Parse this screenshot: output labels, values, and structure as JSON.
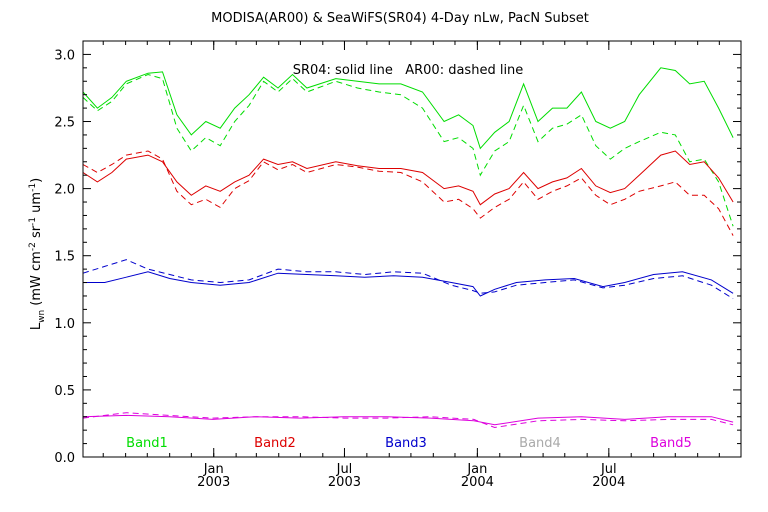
{
  "chart_data": {
    "type": "line",
    "title": "MODISA(AR00) & SeaWiFS(SR04) 4-Day nLw, PacN Subset",
    "annotation": "SR04: solid line   AR00: dashed line",
    "ylabel": "L_wn (mW cm^-2 sr^-1 um^-1)",
    "ylabel_parts": {
      "main": "L",
      "sub": "wn",
      "unit_open": " (mW cm",
      "exp1": "-2",
      "mid1": " sr",
      "exp2": "-1",
      "mid2": " um",
      "exp3": "-1",
      "close": ")"
    },
    "ylim": [
      0,
      3.1
    ],
    "yticks": [
      0.0,
      0.5,
      1.0,
      1.5,
      2.0,
      2.5,
      3.0
    ],
    "ytick_labels": [
      "0.0",
      "0.5",
      "1.0",
      "1.5",
      "2.0",
      "2.5",
      "3.0"
    ],
    "xlim": [
      "2002-07-04",
      "2004-12-31"
    ],
    "xticks": [
      {
        "date": "2003-01-01",
        "label1": "Jan",
        "label2": "2003"
      },
      {
        "date": "2003-07-01",
        "label1": "Jul",
        "label2": "2003"
      },
      {
        "date": "2004-01-01",
        "label1": "Jan",
        "label2": "2004"
      },
      {
        "date": "2004-07-01",
        "label1": "Jul",
        "label2": "2004"
      }
    ],
    "band_labels": [
      {
        "name": "Band1",
        "color": "#00dd00"
      },
      {
        "name": "Band2",
        "color": "#dd0000"
      },
      {
        "name": "Band3",
        "color": "#0000cc"
      },
      {
        "name": "Band4",
        "color": "#aaaaaa"
      },
      {
        "name": "Band5",
        "color": "#dd00dd"
      }
    ],
    "series": [
      {
        "name": "Band1",
        "style": "solid",
        "color": "#00dd00",
        "points": [
          [
            "2002-07-04",
            2.72
          ],
          [
            "2002-07-24",
            2.6
          ],
          [
            "2002-08-13",
            2.68
          ],
          [
            "2002-09-02",
            2.8
          ],
          [
            "2002-10-02",
            2.86
          ],
          [
            "2002-10-22",
            2.87
          ],
          [
            "2002-11-11",
            2.55
          ],
          [
            "2002-12-01",
            2.4
          ],
          [
            "2002-12-21",
            2.5
          ],
          [
            "2003-01-10",
            2.45
          ],
          [
            "2003-01-30",
            2.6
          ],
          [
            "2003-02-19",
            2.7
          ],
          [
            "2003-03-11",
            2.83
          ],
          [
            "2003-03-31",
            2.75
          ],
          [
            "2003-04-20",
            2.85
          ],
          [
            "2003-05-10",
            2.75
          ],
          [
            "2003-06-19",
            2.82
          ],
          [
            "2003-07-19",
            2.8
          ],
          [
            "2003-08-18",
            2.78
          ],
          [
            "2003-09-17",
            2.78
          ],
          [
            "2003-10-17",
            2.72
          ],
          [
            "2003-11-16",
            2.5
          ],
          [
            "2003-12-06",
            2.55
          ],
          [
            "2003-12-26",
            2.47
          ],
          [
            "2004-01-05",
            2.3
          ],
          [
            "2004-01-25",
            2.42
          ],
          [
            "2004-02-14",
            2.5
          ],
          [
            "2004-03-05",
            2.78
          ],
          [
            "2004-03-25",
            2.5
          ],
          [
            "2004-04-14",
            2.6
          ],
          [
            "2004-05-04",
            2.6
          ],
          [
            "2004-05-24",
            2.72
          ],
          [
            "2004-06-13",
            2.5
          ],
          [
            "2004-07-03",
            2.45
          ],
          [
            "2004-07-23",
            2.5
          ],
          [
            "2004-08-12",
            2.7
          ],
          [
            "2004-09-11",
            2.9
          ],
          [
            "2004-10-01",
            2.88
          ],
          [
            "2004-10-21",
            2.78
          ],
          [
            "2004-11-10",
            2.8
          ],
          [
            "2004-11-30",
            2.6
          ],
          [
            "2004-12-20",
            2.38
          ]
        ]
      },
      {
        "name": "Band1",
        "style": "dashed",
        "color": "#00dd00",
        "points": [
          [
            "2002-07-04",
            2.68
          ],
          [
            "2002-07-24",
            2.58
          ],
          [
            "2002-08-13",
            2.65
          ],
          [
            "2002-09-02",
            2.78
          ],
          [
            "2002-10-02",
            2.85
          ],
          [
            "2002-10-22",
            2.82
          ],
          [
            "2002-11-11",
            2.45
          ],
          [
            "2002-12-01",
            2.28
          ],
          [
            "2002-12-21",
            2.38
          ],
          [
            "2003-01-10",
            2.32
          ],
          [
            "2003-01-30",
            2.5
          ],
          [
            "2003-02-19",
            2.62
          ],
          [
            "2003-03-11",
            2.8
          ],
          [
            "2003-03-31",
            2.72
          ],
          [
            "2003-04-20",
            2.82
          ],
          [
            "2003-05-10",
            2.72
          ],
          [
            "2003-06-19",
            2.8
          ],
          [
            "2003-07-19",
            2.75
          ],
          [
            "2003-08-18",
            2.72
          ],
          [
            "2003-09-17",
            2.7
          ],
          [
            "2003-10-17",
            2.6
          ],
          [
            "2003-11-16",
            2.35
          ],
          [
            "2003-12-06",
            2.38
          ],
          [
            "2003-12-26",
            2.3
          ],
          [
            "2004-01-05",
            2.1
          ],
          [
            "2004-01-25",
            2.28
          ],
          [
            "2004-02-14",
            2.35
          ],
          [
            "2004-03-05",
            2.62
          ],
          [
            "2004-03-25",
            2.35
          ],
          [
            "2004-04-14",
            2.45
          ],
          [
            "2004-05-04",
            2.48
          ],
          [
            "2004-05-24",
            2.55
          ],
          [
            "2004-06-13",
            2.32
          ],
          [
            "2004-07-03",
            2.22
          ],
          [
            "2004-07-23",
            2.3
          ],
          [
            "2004-08-12",
            2.35
          ],
          [
            "2004-09-11",
            2.42
          ],
          [
            "2004-10-01",
            2.4
          ],
          [
            "2004-10-21",
            2.2
          ],
          [
            "2004-11-10",
            2.22
          ],
          [
            "2004-11-30",
            2.05
          ],
          [
            "2004-12-20",
            1.72
          ]
        ]
      },
      {
        "name": "Band2",
        "style": "solid",
        "color": "#dd0000",
        "points": [
          [
            "2002-07-04",
            2.12
          ],
          [
            "2002-07-24",
            2.05
          ],
          [
            "2002-08-13",
            2.12
          ],
          [
            "2002-09-02",
            2.22
          ],
          [
            "2002-10-02",
            2.25
          ],
          [
            "2002-10-22",
            2.2
          ],
          [
            "2002-11-11",
            2.05
          ],
          [
            "2002-12-01",
            1.95
          ],
          [
            "2002-12-21",
            2.02
          ],
          [
            "2003-01-10",
            1.98
          ],
          [
            "2003-01-30",
            2.05
          ],
          [
            "2003-02-19",
            2.1
          ],
          [
            "2003-03-11",
            2.22
          ],
          [
            "2003-03-31",
            2.18
          ],
          [
            "2003-04-20",
            2.2
          ],
          [
            "2003-05-10",
            2.15
          ],
          [
            "2003-06-19",
            2.2
          ],
          [
            "2003-07-19",
            2.17
          ],
          [
            "2003-08-18",
            2.15
          ],
          [
            "2003-09-17",
            2.15
          ],
          [
            "2003-10-17",
            2.12
          ],
          [
            "2003-11-16",
            2.0
          ],
          [
            "2003-12-06",
            2.02
          ],
          [
            "2003-12-26",
            1.98
          ],
          [
            "2004-01-05",
            1.88
          ],
          [
            "2004-01-25",
            1.96
          ],
          [
            "2004-02-14",
            2.0
          ],
          [
            "2004-03-05",
            2.12
          ],
          [
            "2004-03-25",
            2.0
          ],
          [
            "2004-04-14",
            2.05
          ],
          [
            "2004-05-04",
            2.08
          ],
          [
            "2004-05-24",
            2.15
          ],
          [
            "2004-06-13",
            2.02
          ],
          [
            "2004-07-03",
            1.97
          ],
          [
            "2004-07-23",
            2.0
          ],
          [
            "2004-08-12",
            2.1
          ],
          [
            "2004-09-11",
            2.25
          ],
          [
            "2004-10-01",
            2.28
          ],
          [
            "2004-10-21",
            2.18
          ],
          [
            "2004-11-10",
            2.2
          ],
          [
            "2004-11-30",
            2.08
          ],
          [
            "2004-12-20",
            1.9
          ]
        ]
      },
      {
        "name": "Band2",
        "style": "dashed",
        "color": "#dd0000",
        "points": [
          [
            "2002-07-04",
            2.18
          ],
          [
            "2002-07-24",
            2.12
          ],
          [
            "2002-08-13",
            2.18
          ],
          [
            "2002-09-02",
            2.25
          ],
          [
            "2002-10-02",
            2.28
          ],
          [
            "2002-10-22",
            2.22
          ],
          [
            "2002-11-11",
            1.98
          ],
          [
            "2002-12-01",
            1.88
          ],
          [
            "2002-12-21",
            1.92
          ],
          [
            "2003-01-10",
            1.86
          ],
          [
            "2003-01-30",
            2.0
          ],
          [
            "2003-02-19",
            2.06
          ],
          [
            "2003-03-11",
            2.2
          ],
          [
            "2003-03-31",
            2.14
          ],
          [
            "2003-04-20",
            2.18
          ],
          [
            "2003-05-10",
            2.12
          ],
          [
            "2003-06-19",
            2.18
          ],
          [
            "2003-07-19",
            2.16
          ],
          [
            "2003-08-18",
            2.13
          ],
          [
            "2003-09-17",
            2.12
          ],
          [
            "2003-10-17",
            2.05
          ],
          [
            "2003-11-16",
            1.9
          ],
          [
            "2003-12-06",
            1.92
          ],
          [
            "2003-12-26",
            1.85
          ],
          [
            "2004-01-05",
            1.78
          ],
          [
            "2004-01-25",
            1.86
          ],
          [
            "2004-02-14",
            1.92
          ],
          [
            "2004-03-05",
            2.05
          ],
          [
            "2004-03-25",
            1.92
          ],
          [
            "2004-04-14",
            1.98
          ],
          [
            "2004-05-04",
            2.02
          ],
          [
            "2004-05-24",
            2.08
          ],
          [
            "2004-06-13",
            1.95
          ],
          [
            "2004-07-03",
            1.88
          ],
          [
            "2004-07-23",
            1.92
          ],
          [
            "2004-08-12",
            1.98
          ],
          [
            "2004-09-11",
            2.02
          ],
          [
            "2004-10-01",
            2.05
          ],
          [
            "2004-10-21",
            1.95
          ],
          [
            "2004-11-10",
            1.95
          ],
          [
            "2004-11-30",
            1.85
          ],
          [
            "2004-12-20",
            1.65
          ]
        ]
      },
      {
        "name": "Band3",
        "style": "solid",
        "color": "#0000cc",
        "points": [
          [
            "2002-07-04",
            1.3
          ],
          [
            "2002-08-03",
            1.3
          ],
          [
            "2002-09-02",
            1.34
          ],
          [
            "2002-10-02",
            1.38
          ],
          [
            "2002-11-01",
            1.33
          ],
          [
            "2002-12-01",
            1.3
          ],
          [
            "2003-01-10",
            1.28
          ],
          [
            "2003-02-19",
            1.3
          ],
          [
            "2003-03-31",
            1.37
          ],
          [
            "2003-05-10",
            1.36
          ],
          [
            "2003-06-19",
            1.35
          ],
          [
            "2003-07-29",
            1.34
          ],
          [
            "2003-09-07",
            1.35
          ],
          [
            "2003-10-17",
            1.34
          ],
          [
            "2003-11-26",
            1.3
          ],
          [
            "2003-12-26",
            1.27
          ],
          [
            "2004-01-05",
            1.2
          ],
          [
            "2004-01-25",
            1.25
          ],
          [
            "2004-02-24",
            1.3
          ],
          [
            "2004-04-04",
            1.32
          ],
          [
            "2004-05-14",
            1.33
          ],
          [
            "2004-06-23",
            1.27
          ],
          [
            "2004-07-23",
            1.3
          ],
          [
            "2004-09-01",
            1.36
          ],
          [
            "2004-10-11",
            1.38
          ],
          [
            "2004-11-20",
            1.32
          ],
          [
            "2004-12-20",
            1.22
          ]
        ]
      },
      {
        "name": "Band3",
        "style": "dashed",
        "color": "#0000cc",
        "points": [
          [
            "2002-07-04",
            1.37
          ],
          [
            "2002-08-03",
            1.42
          ],
          [
            "2002-09-02",
            1.47
          ],
          [
            "2002-10-02",
            1.4
          ],
          [
            "2002-11-01",
            1.36
          ],
          [
            "2002-12-01",
            1.32
          ],
          [
            "2003-01-10",
            1.3
          ],
          [
            "2003-02-19",
            1.32
          ],
          [
            "2003-03-31",
            1.4
          ],
          [
            "2003-05-10",
            1.38
          ],
          [
            "2003-06-19",
            1.38
          ],
          [
            "2003-07-29",
            1.36
          ],
          [
            "2003-09-07",
            1.38
          ],
          [
            "2003-10-17",
            1.37
          ],
          [
            "2003-11-26",
            1.28
          ],
          [
            "2003-12-26",
            1.24
          ],
          [
            "2004-01-05",
            1.22
          ],
          [
            "2004-01-25",
            1.23
          ],
          [
            "2004-02-24",
            1.28
          ],
          [
            "2004-04-04",
            1.3
          ],
          [
            "2004-05-14",
            1.32
          ],
          [
            "2004-06-23",
            1.26
          ],
          [
            "2004-07-23",
            1.28
          ],
          [
            "2004-09-01",
            1.33
          ],
          [
            "2004-10-11",
            1.35
          ],
          [
            "2004-11-20",
            1.28
          ],
          [
            "2004-12-20",
            1.18
          ]
        ]
      },
      {
        "name": "Band5",
        "style": "solid",
        "color": "#dd00dd",
        "points": [
          [
            "2002-07-04",
            0.3
          ],
          [
            "2002-09-02",
            0.31
          ],
          [
            "2002-11-01",
            0.3
          ],
          [
            "2002-12-31",
            0.28
          ],
          [
            "2003-03-01",
            0.3
          ],
          [
            "2003-05-01",
            0.29
          ],
          [
            "2003-06-30",
            0.3
          ],
          [
            "2003-08-29",
            0.3
          ],
          [
            "2003-10-28",
            0.29
          ],
          [
            "2003-12-27",
            0.27
          ],
          [
            "2004-01-25",
            0.24
          ],
          [
            "2004-03-25",
            0.29
          ],
          [
            "2004-05-24",
            0.3
          ],
          [
            "2004-07-23",
            0.28
          ],
          [
            "2004-09-21",
            0.3
          ],
          [
            "2004-11-20",
            0.3
          ],
          [
            "2004-12-20",
            0.26
          ]
        ]
      },
      {
        "name": "Band5",
        "style": "dashed",
        "color": "#dd00dd",
        "points": [
          [
            "2002-07-04",
            0.29
          ],
          [
            "2002-09-02",
            0.33
          ],
          [
            "2002-11-01",
            0.31
          ],
          [
            "2002-12-31",
            0.29
          ],
          [
            "2003-03-01",
            0.3
          ],
          [
            "2003-05-01",
            0.3
          ],
          [
            "2003-06-30",
            0.29
          ],
          [
            "2003-08-29",
            0.29
          ],
          [
            "2003-10-28",
            0.3
          ],
          [
            "2003-12-27",
            0.28
          ],
          [
            "2004-01-25",
            0.22
          ],
          [
            "2004-03-25",
            0.27
          ],
          [
            "2004-05-24",
            0.28
          ],
          [
            "2004-07-23",
            0.27
          ],
          [
            "2004-09-21",
            0.28
          ],
          [
            "2004-11-20",
            0.28
          ],
          [
            "2004-12-20",
            0.24
          ]
        ]
      }
    ]
  }
}
